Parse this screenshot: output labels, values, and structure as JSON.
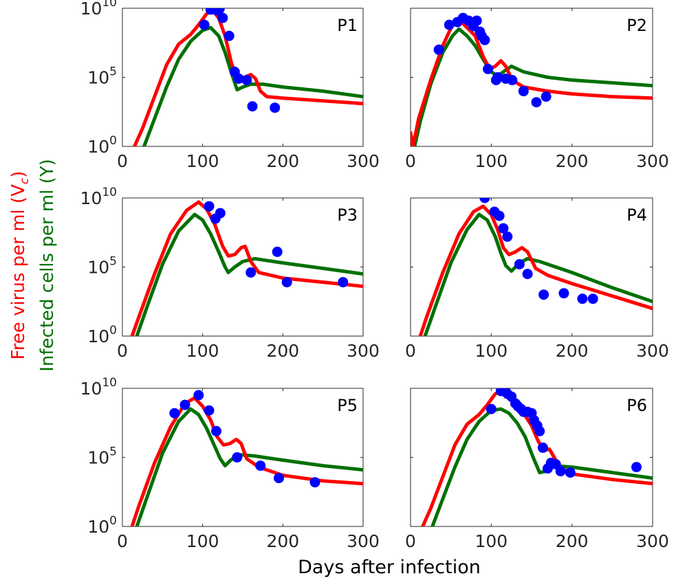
{
  "figure": {
    "xlabel": "Days after infection",
    "ylabel_free_virus": "Free virus per ml (V",
    "ylabel_free_virus_sub": "c",
    "ylabel_free_virus_end": ")",
    "ylabel_infected": "Infected cells per ml (Y)",
    "free_virus_color": "#ff0000",
    "infected_color": "#007000",
    "data_color": "#0000ff"
  },
  "chart_data": [
    {
      "type": "line",
      "panel": "P1",
      "xlim": [
        0,
        300
      ],
      "ylim_log10": [
        0,
        10
      ],
      "yscale": "log",
      "xticks": [
        0,
        100,
        200,
        300
      ],
      "yticks": [
        {
          "base": "10",
          "exp": "0"
        },
        {
          "base": "10",
          "exp": "5"
        },
        {
          "base": "10",
          "exp": "10"
        }
      ],
      "virus": [
        [
          15,
          0
        ],
        [
          25,
          1.3
        ],
        [
          40,
          3.6
        ],
        [
          55,
          5.9
        ],
        [
          70,
          7.4
        ],
        [
          85,
          8.1
        ],
        [
          95,
          8.8
        ],
        [
          105,
          9.6
        ],
        [
          113,
          9.8
        ],
        [
          120,
          9.3
        ],
        [
          128,
          8.0
        ],
        [
          136,
          6.0
        ],
        [
          144,
          4.8
        ],
        [
          152,
          5.0
        ],
        [
          160,
          5.2
        ],
        [
          166,
          4.9
        ],
        [
          172,
          4.0
        ],
        [
          180,
          3.6
        ],
        [
          200,
          3.5
        ],
        [
          250,
          3.3
        ],
        [
          300,
          3.1
        ]
      ],
      "infected": [
        [
          27,
          0
        ],
        [
          40,
          2.0
        ],
        [
          55,
          4.3
        ],
        [
          70,
          6.3
        ],
        [
          85,
          7.6
        ],
        [
          100,
          8.4
        ],
        [
          110,
          8.6
        ],
        [
          120,
          8.0
        ],
        [
          128,
          6.8
        ],
        [
          136,
          5.3
        ],
        [
          143,
          4.1
        ],
        [
          150,
          4.3
        ],
        [
          160,
          4.5
        ],
        [
          175,
          4.5
        ],
        [
          200,
          4.3
        ],
        [
          250,
          4.0
        ],
        [
          300,
          3.6
        ]
      ],
      "points": [
        [
          102,
          8.8
        ],
        [
          110,
          9.9
        ],
        [
          118,
          9.85
        ],
        [
          121,
          9.95
        ],
        [
          125,
          9.3
        ],
        [
          133,
          8.0
        ],
        [
          140,
          5.4
        ],
        [
          145,
          4.9
        ],
        [
          155,
          4.8
        ],
        [
          162,
          2.9
        ],
        [
          190,
          2.8
        ]
      ]
    },
    {
      "type": "line",
      "panel": "P2",
      "xlim": [
        0,
        300
      ],
      "ylim_log10": [
        0,
        10
      ],
      "yscale": "log",
      "xticks": [
        0,
        100,
        200,
        300
      ],
      "yticks": [],
      "virus": [
        [
          0,
          1.0
        ],
        [
          3,
          0
        ],
        [
          10,
          2.0
        ],
        [
          25,
          4.8
        ],
        [
          40,
          7.3
        ],
        [
          52,
          8.8
        ],
        [
          60,
          9.2
        ],
        [
          70,
          8.6
        ],
        [
          80,
          8.0
        ],
        [
          90,
          6.5
        ],
        [
          98,
          5.6
        ],
        [
          105,
          5.8
        ],
        [
          112,
          6.2
        ],
        [
          118,
          5.8
        ],
        [
          126,
          4.8
        ],
        [
          140,
          4.3
        ],
        [
          170,
          4.0
        ],
        [
          200,
          3.8
        ],
        [
          250,
          3.6
        ],
        [
          300,
          3.5
        ]
      ],
      "infected": [
        [
          5,
          0
        ],
        [
          12,
          1.8
        ],
        [
          25,
          4.5
        ],
        [
          40,
          6.8
        ],
        [
          52,
          8.0
        ],
        [
          60,
          8.5
        ],
        [
          70,
          8.0
        ],
        [
          80,
          7.3
        ],
        [
          90,
          6.3
        ],
        [
          100,
          5.4
        ],
        [
          108,
          5.1
        ],
        [
          115,
          5.4
        ],
        [
          125,
          5.8
        ],
        [
          140,
          5.4
        ],
        [
          170,
          5.0
        ],
        [
          200,
          4.8
        ],
        [
          250,
          4.6
        ],
        [
          300,
          4.4
        ]
      ],
      "points": [
        [
          35,
          7.0
        ],
        [
          48,
          8.8
        ],
        [
          58,
          9.0
        ],
        [
          65,
          9.3
        ],
        [
          72,
          9.1
        ],
        [
          78,
          8.7
        ],
        [
          82,
          9.1
        ],
        [
          86,
          8.3
        ],
        [
          88,
          8.0
        ],
        [
          92,
          7.7
        ],
        [
          96,
          5.6
        ],
        [
          106,
          4.8
        ],
        [
          108,
          5.0
        ],
        [
          118,
          4.9
        ],
        [
          126,
          4.8
        ],
        [
          140,
          4.0
        ],
        [
          156,
          3.2
        ],
        [
          168,
          3.6
        ]
      ]
    },
    {
      "type": "line",
      "panel": "P3",
      "xlim": [
        0,
        300
      ],
      "ylim_log10": [
        0,
        10
      ],
      "yscale": "log",
      "xticks": [
        0,
        100,
        200,
        300
      ],
      "yticks": [
        {
          "base": "10",
          "exp": "0"
        },
        {
          "base": "10",
          "exp": "5"
        },
        {
          "base": "10",
          "exp": "10"
        }
      ],
      "virus": [
        [
          12,
          0
        ],
        [
          20,
          1.3
        ],
        [
          40,
          4.5
        ],
        [
          60,
          7.4
        ],
        [
          80,
          9.1
        ],
        [
          95,
          9.7
        ],
        [
          105,
          9.2
        ],
        [
          115,
          8.1
        ],
        [
          125,
          6.5
        ],
        [
          132,
          5.8
        ],
        [
          140,
          5.9
        ],
        [
          148,
          6.4
        ],
        [
          153,
          6.5
        ],
        [
          160,
          5.4
        ],
        [
          170,
          4.6
        ],
        [
          200,
          4.2
        ],
        [
          250,
          3.9
        ],
        [
          300,
          3.6
        ]
      ],
      "infected": [
        [
          18,
          0
        ],
        [
          30,
          2.0
        ],
        [
          50,
          5.2
        ],
        [
          70,
          7.6
        ],
        [
          90,
          8.8
        ],
        [
          100,
          8.4
        ],
        [
          110,
          7.4
        ],
        [
          120,
          6.1
        ],
        [
          128,
          5.0
        ],
        [
          132,
          4.6
        ],
        [
          140,
          5.0
        ],
        [
          150,
          5.4
        ],
        [
          165,
          5.6
        ],
        [
          200,
          5.3
        ],
        [
          250,
          4.9
        ],
        [
          300,
          4.5
        ]
      ],
      "points": [
        [
          108,
          9.4
        ],
        [
          116,
          8.5
        ],
        [
          122,
          8.9
        ],
        [
          160,
          4.6
        ],
        [
          193,
          6.1
        ],
        [
          205,
          3.9
        ],
        [
          275,
          3.9
        ]
      ]
    },
    {
      "type": "line",
      "panel": "P4",
      "xlim": [
        0,
        300
      ],
      "ylim_log10": [
        0,
        10
      ],
      "yscale": "log",
      "xticks": [
        0,
        100,
        200,
        300
      ],
      "yticks": [],
      "virus": [
        [
          12,
          0
        ],
        [
          20,
          1.4
        ],
        [
          40,
          4.6
        ],
        [
          60,
          7.4
        ],
        [
          78,
          9.0
        ],
        [
          90,
          9.4
        ],
        [
          100,
          8.8
        ],
        [
          108,
          7.7
        ],
        [
          115,
          6.4
        ],
        [
          122,
          5.9
        ],
        [
          130,
          6.1
        ],
        [
          138,
          6.4
        ],
        [
          145,
          6.1
        ],
        [
          155,
          4.9
        ],
        [
          170,
          4.4
        ],
        [
          200,
          3.8
        ],
        [
          250,
          2.9
        ],
        [
          300,
          2.0
        ]
      ],
      "infected": [
        [
          18,
          0
        ],
        [
          30,
          2.0
        ],
        [
          50,
          5.3
        ],
        [
          70,
          7.7
        ],
        [
          85,
          8.8
        ],
        [
          95,
          8.4
        ],
        [
          105,
          7.2
        ],
        [
          112,
          6.0
        ],
        [
          118,
          5.1
        ],
        [
          125,
          4.7
        ],
        [
          135,
          5.3
        ],
        [
          145,
          5.6
        ],
        [
          160,
          5.4
        ],
        [
          200,
          4.6
        ],
        [
          250,
          3.5
        ],
        [
          300,
          2.5
        ]
      ],
      "points": [
        [
          92,
          10.0
        ],
        [
          104,
          9.0
        ],
        [
          110,
          8.7
        ],
        [
          115,
          7.8
        ],
        [
          120,
          7.2
        ],
        [
          135,
          5.2
        ],
        [
          145,
          4.5
        ],
        [
          165,
          3.0
        ],
        [
          190,
          3.1
        ],
        [
          213,
          2.7
        ],
        [
          226,
          2.7
        ]
      ]
    },
    {
      "type": "line",
      "panel": "P5",
      "xlim": [
        0,
        300
      ],
      "ylim_log10": [
        0,
        10
      ],
      "yscale": "log",
      "xticks": [
        0,
        100,
        200,
        300
      ],
      "yticks": [
        {
          "base": "10",
          "exp": "0"
        },
        {
          "base": "10",
          "exp": "5"
        },
        {
          "base": "10",
          "exp": "10"
        }
      ],
      "virus": [
        [
          12,
          0
        ],
        [
          20,
          1.4
        ],
        [
          40,
          4.6
        ],
        [
          60,
          7.2
        ],
        [
          78,
          8.9
        ],
        [
          90,
          9.3
        ],
        [
          100,
          8.7
        ],
        [
          110,
          7.7
        ],
        [
          118,
          6.5
        ],
        [
          126,
          5.9
        ],
        [
          134,
          6.0
        ],
        [
          142,
          6.3
        ],
        [
          148,
          6.0
        ],
        [
          155,
          4.9
        ],
        [
          170,
          4.3
        ],
        [
          200,
          3.7
        ],
        [
          250,
          3.3
        ],
        [
          300,
          3.1
        ]
      ],
      "infected": [
        [
          18,
          0
        ],
        [
          30,
          2.0
        ],
        [
          50,
          5.3
        ],
        [
          70,
          7.6
        ],
        [
          85,
          8.5
        ],
        [
          95,
          8.1
        ],
        [
          105,
          7.1
        ],
        [
          115,
          5.8
        ],
        [
          122,
          4.9
        ],
        [
          128,
          4.4
        ],
        [
          135,
          4.8
        ],
        [
          145,
          5.2
        ],
        [
          165,
          5.1
        ],
        [
          200,
          4.8
        ],
        [
          250,
          4.4
        ],
        [
          300,
          4.1
        ]
      ],
      "points": [
        [
          65,
          8.2
        ],
        [
          78,
          8.8
        ],
        [
          95,
          9.5
        ],
        [
          108,
          8.4
        ],
        [
          117,
          6.9
        ],
        [
          143,
          5.0
        ],
        [
          172,
          4.4
        ],
        [
          195,
          3.5
        ],
        [
          240,
          3.2
        ]
      ]
    },
    {
      "type": "line",
      "panel": "P6",
      "xlim": [
        0,
        300
      ],
      "ylim_log10": [
        0,
        10
      ],
      "yscale": "log",
      "xticks": [
        0,
        100,
        200,
        300
      ],
      "yticks": [],
      "virus": [
        [
          15,
          0
        ],
        [
          25,
          1.3
        ],
        [
          40,
          3.6
        ],
        [
          55,
          5.9
        ],
        [
          70,
          7.4
        ],
        [
          85,
          8.1
        ],
        [
          95,
          8.8
        ],
        [
          105,
          9.6
        ],
        [
          113,
          9.8
        ],
        [
          120,
          9.4
        ],
        [
          130,
          8.8
        ],
        [
          140,
          8.2
        ],
        [
          150,
          7.3
        ],
        [
          158,
          6.2
        ],
        [
          165,
          5.5
        ],
        [
          172,
          5.6
        ],
        [
          178,
          5.0
        ],
        [
          185,
          4.3
        ],
        [
          200,
          3.8
        ],
        [
          250,
          3.4
        ],
        [
          300,
          3.1
        ]
      ],
      "infected": [
        [
          27,
          0
        ],
        [
          40,
          2.0
        ],
        [
          55,
          4.3
        ],
        [
          70,
          6.3
        ],
        [
          85,
          7.6
        ],
        [
          100,
          8.4
        ],
        [
          112,
          8.5
        ],
        [
          122,
          8.2
        ],
        [
          132,
          7.5
        ],
        [
          142,
          6.5
        ],
        [
          152,
          5.0
        ],
        [
          160,
          3.9
        ],
        [
          168,
          4.0
        ],
        [
          178,
          4.4
        ],
        [
          200,
          4.3
        ],
        [
          250,
          3.9
        ],
        [
          300,
          3.5
        ]
      ],
      "points": [
        [
          100,
          8.5
        ],
        [
          112,
          9.8
        ],
        [
          117,
          9.9
        ],
        [
          120,
          9.6
        ],
        [
          125,
          9.4
        ],
        [
          130,
          8.9
        ],
        [
          133,
          8.7
        ],
        [
          137,
          8.5
        ],
        [
          140,
          8.3
        ],
        [
          145,
          8.3
        ],
        [
          150,
          8.2
        ],
        [
          153,
          7.7
        ],
        [
          157,
          7.3
        ],
        [
          160,
          6.9
        ],
        [
          164,
          5.7
        ],
        [
          170,
          4.2
        ],
        [
          174,
          4.6
        ],
        [
          180,
          4.5
        ],
        [
          186,
          4.0
        ],
        [
          198,
          3.9
        ],
        [
          280,
          4.3
        ]
      ]
    }
  ]
}
